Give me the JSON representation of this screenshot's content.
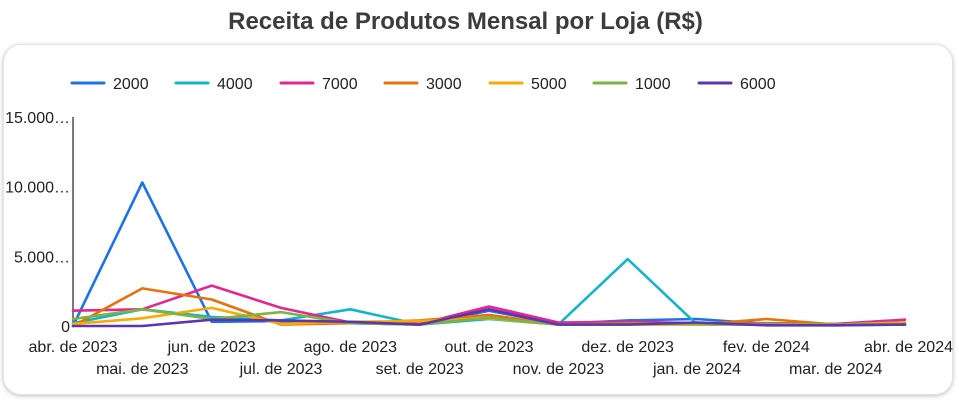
{
  "chart_data": {
    "type": "line",
    "title": "Receita de Produtos Mensal por Loja (R$)",
    "xlabel": "",
    "ylabel": "",
    "ylim": [
      0,
      15000
    ],
    "y_ticks": [
      {
        "value": 0,
        "label": "0"
      },
      {
        "value": 5000,
        "label": "5.000…"
      },
      {
        "value": 10000,
        "label": "10.000…"
      },
      {
        "value": 15000,
        "label": "15.000…"
      }
    ],
    "categories": [
      "abr. de 2023",
      "mai. de 2023",
      "jun. de 2023",
      "jul. de 2023",
      "ago. de 2023",
      "set. de 2023",
      "out. de 2023",
      "nov. de 2023",
      "dez. de 2023",
      "jan. de 2024",
      "fev. de 2024",
      "mar. de 2024",
      "abr. de 2024"
    ],
    "legend_position": "top-left",
    "series": [
      {
        "name": "2000",
        "color": "#1a73e8",
        "values": [
          0,
          10300,
          300,
          350,
          200,
          100,
          1100,
          150,
          400,
          500,
          150,
          100,
          150
        ]
      },
      {
        "name": "4000",
        "color": "#12b5cb",
        "values": [
          200,
          1200,
          650,
          400,
          1200,
          100,
          500,
          100,
          4800,
          100,
          100,
          50,
          100
        ]
      },
      {
        "name": "7000",
        "color": "#e52592",
        "values": [
          1100,
          1200,
          2900,
          1300,
          250,
          150,
          1400,
          250,
          300,
          200,
          200,
          150,
          450
        ]
      },
      {
        "name": "3000",
        "color": "#e8710a",
        "values": [
          0,
          2700,
          1900,
          100,
          200,
          400,
          800,
          100,
          200,
          100,
          500,
          100,
          150
        ]
      },
      {
        "name": "5000",
        "color": "#f9ab00",
        "values": [
          150,
          550,
          1300,
          150,
          300,
          350,
          550,
          100,
          100,
          100,
          150,
          100,
          250
        ]
      },
      {
        "name": "1000",
        "color": "#7cb342",
        "values": [
          500,
          1200,
          500,
          1000,
          200,
          100,
          600,
          100,
          150,
          150,
          150,
          100,
          150
        ]
      },
      {
        "name": "6000",
        "color": "#5e35b1",
        "values": [
          0,
          0,
          450,
          400,
          300,
          100,
          1200,
          100,
          100,
          250,
          50,
          50,
          100
        ]
      }
    ]
  }
}
